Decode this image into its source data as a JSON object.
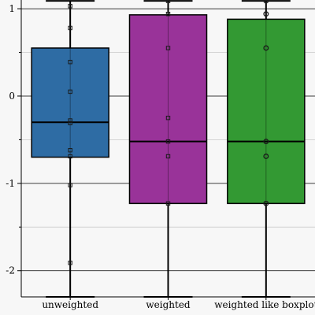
{
  "chart_data": {
    "type": "box",
    "title": "",
    "xlabel": "",
    "ylabel": "",
    "ylim": [
      -2.3,
      1.1
    ],
    "y_ticks": [
      -2,
      -1,
      0,
      1
    ],
    "y_tick_labels": [
      "-2",
      "-1",
      "0",
      "1"
    ],
    "grid": true,
    "legend": "none",
    "categories": [
      "unweighted",
      "weighted",
      "weighted like boxplot"
    ],
    "boxes": [
      {
        "label": "unweighted",
        "color": "#2e6ca4",
        "whisker_low": -2.3,
        "q1": -0.7,
        "median": -0.3,
        "q3": 0.55,
        "whisker_high": 1.09,
        "points": [
          1.03,
          0.78,
          0.39,
          0.05,
          -0.28,
          -0.31,
          -0.62,
          -0.69,
          -1.02,
          -1.91
        ],
        "marker": "square"
      },
      {
        "label": "weighted",
        "color": "#993399",
        "whisker_low": -2.3,
        "q1": -1.23,
        "median": -0.52,
        "q3": 0.93,
        "whisker_high": 1.09,
        "points": [
          1.09,
          0.94,
          0.55,
          -0.25,
          -0.52,
          -0.69,
          -1.23
        ],
        "marker": "square"
      },
      {
        "label": "weighted like boxplot",
        "color": "#339933",
        "whisker_low": -2.3,
        "q1": -1.23,
        "median": -0.52,
        "q3": 0.88,
        "whisker_high": 1.09,
        "points": [
          1.09,
          0.94,
          0.55,
          -0.52,
          -0.69,
          -1.23
        ],
        "marker": "circle"
      }
    ]
  }
}
